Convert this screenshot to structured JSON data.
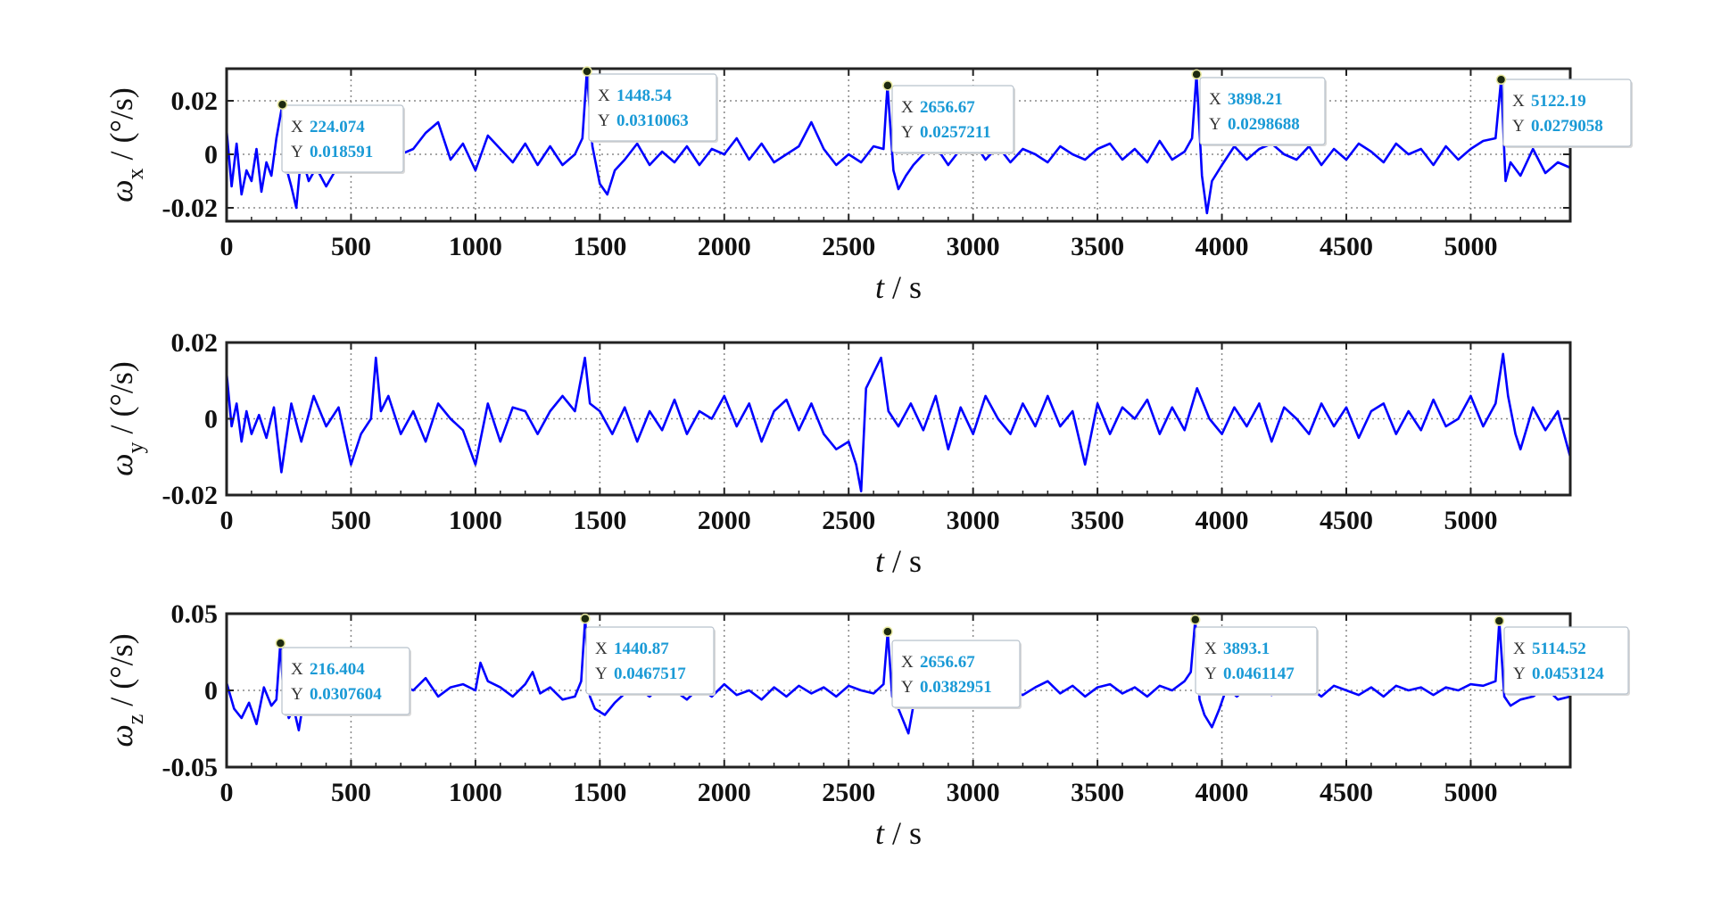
{
  "colors": {
    "line": "#0000ff",
    "datatip_value": "#1a9ad6",
    "datatip_label": "#333333",
    "grid": "#888888"
  },
  "chart_data": [
    {
      "type": "line",
      "id": "wx",
      "xlabel_italic": "t",
      "xlabel_rest": " / s",
      "ylabel_symbol": "ω",
      "ylabel_sub": "x",
      "ylabel_rest": " / (°/s)",
      "xlim": [
        0,
        5400
      ],
      "ylim": [
        -0.025,
        0.032
      ],
      "xticks": [
        0,
        500,
        1000,
        1500,
        2000,
        2500,
        3000,
        3500,
        4000,
        4500,
        5000
      ],
      "xtick_labels": [
        "0",
        "500",
        "1000",
        "1500",
        "2000",
        "2500",
        "3000",
        "3500",
        "4000",
        "4500",
        "5000"
      ],
      "yticks": [
        -0.02,
        0,
        0.02
      ],
      "ytick_labels": [
        "-0.02",
        "0",
        "0.02"
      ],
      "grid": true,
      "series": [
        {
          "x": [
            0,
            20,
            40,
            60,
            80,
            100,
            120,
            140,
            160,
            180,
            200,
            224,
            240,
            260,
            280,
            300,
            330,
            360,
            400,
            450,
            500,
            550,
            600,
            650,
            700,
            750,
            800,
            850,
            900,
            950,
            1000,
            1050,
            1100,
            1150,
            1200,
            1250,
            1300,
            1350,
            1400,
            1430,
            1448,
            1470,
            1500,
            1530,
            1560,
            1600,
            1650,
            1700,
            1750,
            1800,
            1850,
            1900,
            1950,
            2000,
            2050,
            2100,
            2150,
            2200,
            2250,
            2300,
            2350,
            2400,
            2450,
            2500,
            2550,
            2600,
            2640,
            2656,
            2680,
            2700,
            2730,
            2760,
            2800,
            2850,
            2900,
            2950,
            3000,
            3050,
            3100,
            3150,
            3200,
            3250,
            3300,
            3350,
            3400,
            3450,
            3500,
            3550,
            3600,
            3650,
            3700,
            3750,
            3800,
            3850,
            3880,
            3898,
            3920,
            3940,
            3960,
            4000,
            4050,
            4100,
            4150,
            4200,
            4250,
            4300,
            4350,
            4400,
            4450,
            4500,
            4550,
            4600,
            4650,
            4700,
            4750,
            4800,
            4850,
            4900,
            4950,
            5000,
            5050,
            5100,
            5122,
            5140,
            5160,
            5200,
            5250,
            5300,
            5350,
            5400
          ],
          "y": [
            0.009,
            -0.012,
            0.004,
            -0.015,
            -0.006,
            -0.01,
            0.002,
            -0.014,
            -0.003,
            -0.008,
            0.006,
            0.0186,
            -0.005,
            -0.012,
            -0.02,
            0.0,
            -0.01,
            -0.005,
            -0.012,
            -0.004,
            0.002,
            -0.004,
            -0.006,
            0.003,
            0.0,
            0.002,
            0.008,
            0.012,
            -0.002,
            0.004,
            -0.006,
            0.007,
            0.002,
            -0.003,
            0.004,
            -0.004,
            0.003,
            -0.004,
            0.0,
            0.006,
            0.031,
            0.003,
            -0.011,
            -0.015,
            -0.006,
            -0.002,
            0.004,
            -0.004,
            0.001,
            -0.003,
            0.003,
            -0.004,
            0.002,
            0.0,
            0.006,
            -0.002,
            0.004,
            -0.003,
            0.0,
            0.003,
            0.012,
            0.002,
            -0.004,
            0.0,
            -0.003,
            0.003,
            0.002,
            0.0257,
            -0.006,
            -0.013,
            -0.008,
            -0.004,
            0.0,
            0.003,
            -0.004,
            0.002,
            0.005,
            -0.002,
            0.003,
            -0.003,
            0.002,
            0.0,
            -0.003,
            0.003,
            0.0,
            -0.002,
            0.002,
            0.004,
            -0.002,
            0.002,
            -0.003,
            0.005,
            -0.002,
            0.001,
            0.006,
            0.0299,
            -0.008,
            -0.022,
            -0.01,
            -0.004,
            0.003,
            -0.002,
            0.002,
            0.004,
            0.0,
            -0.002,
            0.003,
            -0.004,
            0.002,
            -0.002,
            0.004,
            0.001,
            -0.003,
            0.004,
            0.0,
            0.002,
            -0.004,
            0.003,
            -0.002,
            0.002,
            0.005,
            0.006,
            0.0279,
            -0.01,
            -0.003,
            -0.008,
            0.002,
            -0.007,
            -0.003,
            -0.005
          ]
        }
      ],
      "datatips": [
        {
          "x": 224.074,
          "y": 0.018591,
          "x_label": "X",
          "y_label": "Y",
          "x_text": "224.074",
          "y_text": "0.018591"
        },
        {
          "x": 1448.54,
          "y": 0.0310063,
          "x_label": "X",
          "y_label": "Y",
          "x_text": "1448.54",
          "y_text": "0.0310063"
        },
        {
          "x": 2656.67,
          "y": 0.0257211,
          "x_label": "X",
          "y_label": "Y",
          "x_text": "2656.67",
          "y_text": "0.0257211"
        },
        {
          "x": 3898.21,
          "y": 0.0298688,
          "x_label": "X",
          "y_label": "Y",
          "x_text": "3898.21",
          "y_text": "0.0298688"
        },
        {
          "x": 5122.19,
          "y": 0.0279058,
          "x_label": "X",
          "y_label": "Y",
          "x_text": "5122.19",
          "y_text": "0.0279058"
        }
      ]
    },
    {
      "type": "line",
      "id": "wy",
      "xlabel_italic": "t",
      "xlabel_rest": " / s",
      "ylabel_symbol": "ω",
      "ylabel_sub": "y",
      "ylabel_rest": " / (°/s)",
      "xlim": [
        0,
        5400
      ],
      "ylim": [
        -0.02,
        0.02
      ],
      "xticks": [
        0,
        500,
        1000,
        1500,
        2000,
        2500,
        3000,
        3500,
        4000,
        4500,
        5000
      ],
      "xtick_labels": [
        "0",
        "500",
        "1000",
        "1500",
        "2000",
        "2500",
        "3000",
        "3500",
        "4000",
        "4500",
        "5000"
      ],
      "yticks": [
        -0.02,
        0,
        0.02
      ],
      "ytick_labels": [
        "-0.02",
        "0",
        "0.02"
      ],
      "grid": true,
      "series": [
        {
          "x": [
            0,
            20,
            40,
            60,
            80,
            100,
            130,
            160,
            190,
            220,
            260,
            300,
            350,
            400,
            450,
            500,
            540,
            580,
            600,
            620,
            650,
            700,
            750,
            800,
            850,
            900,
            950,
            1000,
            1050,
            1100,
            1150,
            1200,
            1250,
            1300,
            1350,
            1400,
            1440,
            1460,
            1500,
            1550,
            1600,
            1650,
            1700,
            1750,
            1800,
            1850,
            1900,
            1950,
            2000,
            2050,
            2100,
            2150,
            2200,
            2250,
            2300,
            2350,
            2400,
            2450,
            2500,
            2530,
            2550,
            2570,
            2600,
            2630,
            2660,
            2700,
            2750,
            2800,
            2850,
            2900,
            2950,
            3000,
            3050,
            3100,
            3150,
            3200,
            3250,
            3300,
            3350,
            3400,
            3450,
            3500,
            3550,
            3600,
            3650,
            3700,
            3750,
            3800,
            3850,
            3900,
            3950,
            4000,
            4050,
            4100,
            4150,
            4200,
            4250,
            4300,
            4350,
            4400,
            4450,
            4500,
            4550,
            4600,
            4650,
            4700,
            4750,
            4800,
            4850,
            4900,
            4950,
            5000,
            5050,
            5100,
            5130,
            5150,
            5180,
            5200,
            5250,
            5300,
            5350,
            5400
          ],
          "y": [
            0.012,
            -0.002,
            0.004,
            -0.006,
            0.002,
            -0.004,
            0.001,
            -0.005,
            0.003,
            -0.014,
            0.004,
            -0.006,
            0.006,
            -0.002,
            0.003,
            -0.012,
            -0.004,
            0.0,
            0.016,
            0.002,
            0.006,
            -0.004,
            0.002,
            -0.006,
            0.004,
            0.0,
            -0.003,
            -0.012,
            0.004,
            -0.006,
            0.003,
            0.002,
            -0.004,
            0.002,
            0.006,
            0.002,
            0.016,
            0.004,
            0.002,
            -0.004,
            0.003,
            -0.006,
            0.002,
            -0.003,
            0.005,
            -0.004,
            0.002,
            0.0,
            0.006,
            -0.002,
            0.004,
            -0.006,
            0.002,
            0.005,
            -0.003,
            0.004,
            -0.004,
            -0.008,
            -0.006,
            -0.012,
            -0.019,
            0.008,
            0.012,
            0.016,
            0.002,
            -0.002,
            0.004,
            -0.003,
            0.006,
            -0.008,
            0.003,
            -0.004,
            0.006,
            0.0,
            -0.004,
            0.004,
            -0.002,
            0.006,
            -0.002,
            0.002,
            -0.012,
            0.004,
            -0.004,
            0.003,
            0.0,
            0.005,
            -0.004,
            0.003,
            -0.003,
            0.008,
            0.0,
            -0.004,
            0.003,
            -0.002,
            0.004,
            -0.006,
            0.003,
            0.0,
            -0.004,
            0.004,
            -0.002,
            0.003,
            -0.005,
            0.002,
            0.004,
            -0.004,
            0.002,
            -0.003,
            0.005,
            -0.002,
            0.0,
            0.006,
            -0.002,
            0.004,
            0.017,
            0.006,
            -0.004,
            -0.008,
            0.003,
            -0.003,
            0.002,
            -0.01
          ]
        }
      ],
      "datatips": []
    },
    {
      "type": "line",
      "id": "wz",
      "xlabel_italic": "t",
      "xlabel_rest": " / s",
      "ylabel_symbol": "ω",
      "ylabel_sub": "z",
      "ylabel_rest": " / (°/s)",
      "xlim": [
        0,
        5400
      ],
      "ylim": [
        -0.05,
        0.05
      ],
      "xticks": [
        0,
        500,
        1000,
        1500,
        2000,
        2500,
        3000,
        3500,
        4000,
        4500,
        5000
      ],
      "xtick_labels": [
        "0",
        "500",
        "1000",
        "1500",
        "2000",
        "2500",
        "3000",
        "3500",
        "4000",
        "4500",
        "5000"
      ],
      "yticks": [
        -0.05,
        0,
        0.05
      ],
      "ytick_labels": [
        "-0.05",
        "0",
        "0.05"
      ],
      "grid": true,
      "series": [
        {
          "x": [
            0,
            30,
            60,
            90,
            120,
            150,
            180,
            200,
            216,
            230,
            250,
            270,
            290,
            320,
            360,
            400,
            450,
            500,
            550,
            600,
            650,
            700,
            750,
            800,
            850,
            900,
            950,
            1000,
            1020,
            1050,
            1100,
            1150,
            1200,
            1230,
            1260,
            1300,
            1350,
            1400,
            1425,
            1441,
            1460,
            1480,
            1520,
            1560,
            1600,
            1650,
            1700,
            1750,
            1800,
            1850,
            1900,
            1950,
            2000,
            2050,
            2100,
            2150,
            2200,
            2250,
            2300,
            2350,
            2400,
            2450,
            2500,
            2550,
            2600,
            2640,
            2657,
            2675,
            2700,
            2720,
            2740,
            2760,
            2800,
            2850,
            2900,
            2950,
            3000,
            3050,
            3100,
            3150,
            3200,
            3250,
            3300,
            3350,
            3400,
            3450,
            3500,
            3550,
            3600,
            3650,
            3700,
            3750,
            3800,
            3850,
            3875,
            3893,
            3910,
            3930,
            3960,
            3990,
            4020,
            4060,
            4100,
            4150,
            4200,
            4250,
            4300,
            4350,
            4400,
            4450,
            4500,
            4550,
            4600,
            4650,
            4700,
            4750,
            4800,
            4850,
            4900,
            4950,
            5000,
            5050,
            5100,
            5115,
            5135,
            5160,
            5200,
            5250,
            5300,
            5350,
            5400
          ],
          "y": [
            0.005,
            -0.012,
            -0.018,
            -0.008,
            -0.022,
            0.002,
            -0.01,
            -0.006,
            0.0308,
            -0.006,
            -0.018,
            -0.012,
            -0.026,
            0.004,
            -0.004,
            0.002,
            -0.002,
            0.0,
            0.006,
            0.002,
            -0.004,
            0.004,
            0.0,
            0.008,
            -0.004,
            0.002,
            0.004,
            0.0,
            0.018,
            0.006,
            0.002,
            -0.004,
            0.004,
            0.012,
            -0.002,
            0.002,
            -0.006,
            -0.004,
            0.006,
            0.0468,
            -0.004,
            -0.012,
            -0.016,
            -0.008,
            -0.002,
            0.002,
            -0.004,
            0.004,
            0.0,
            -0.006,
            0.002,
            -0.004,
            0.004,
            -0.003,
            0.0,
            -0.006,
            0.002,
            -0.004,
            0.003,
            -0.002,
            0.002,
            -0.004,
            0.003,
            0.0,
            -0.002,
            0.004,
            0.0383,
            -0.004,
            -0.012,
            -0.02,
            -0.028,
            -0.01,
            0.002,
            -0.003,
            0.004,
            -0.002,
            0.002,
            -0.004,
            0.003,
            0.0,
            -0.003,
            0.002,
            0.006,
            -0.002,
            0.003,
            -0.004,
            0.002,
            0.004,
            -0.002,
            0.002,
            -0.004,
            0.003,
            0.0,
            0.006,
            0.012,
            0.0461,
            -0.006,
            -0.016,
            -0.024,
            -0.012,
            0.002,
            -0.004,
            0.002,
            0.0,
            -0.003,
            0.004,
            -0.002,
            0.002,
            -0.004,
            0.003,
            0.0,
            -0.003,
            0.002,
            -0.004,
            0.003,
            0.0,
            0.002,
            -0.003,
            0.002,
            0.0,
            0.004,
            0.003,
            0.006,
            0.0453,
            -0.004,
            -0.01,
            -0.006,
            -0.004,
            0.002,
            -0.006,
            -0.004
          ]
        }
      ],
      "datatips": [
        {
          "x": 216.404,
          "y": 0.0307604,
          "x_label": "X",
          "y_label": "Y",
          "x_text": "216.404",
          "y_text": "0.0307604"
        },
        {
          "x": 1440.87,
          "y": 0.0467517,
          "x_label": "X",
          "y_label": "Y",
          "x_text": "1440.87",
          "y_text": "0.0467517"
        },
        {
          "x": 2656.67,
          "y": 0.0382951,
          "x_label": "X",
          "y_label": "Y",
          "x_text": "2656.67",
          "y_text": "0.0382951"
        },
        {
          "x": 3893.1,
          "y": 0.0461147,
          "x_label": "X",
          "y_label": "Y",
          "x_text": "3893.1",
          "y_text": "0.0461147"
        },
        {
          "x": 5114.52,
          "y": 0.0453124,
          "x_label": "X",
          "y_label": "Y",
          "x_text": "5114.52",
          "y_text": "0.0453124"
        }
      ]
    }
  ]
}
